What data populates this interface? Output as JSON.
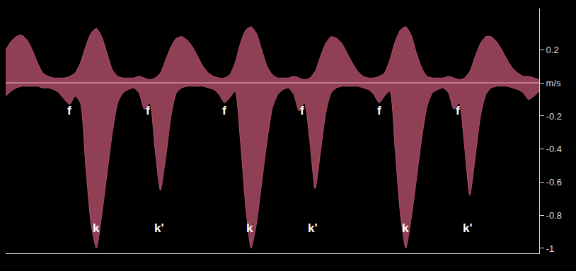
{
  "chart_data": {
    "type": "area",
    "x": [
      0,
      1,
      2,
      3,
      4,
      5,
      6,
      7,
      8,
      9,
      10,
      11,
      12,
      13,
      14,
      15,
      16,
      17,
      18,
      19,
      20,
      21,
      22,
      23,
      24,
      25,
      26,
      27,
      28,
      29,
      30,
      31,
      32,
      33,
      34,
      35,
      36,
      37,
      38,
      39,
      40,
      41,
      42,
      43,
      44,
      45,
      46,
      47,
      48,
      49,
      50,
      51,
      52,
      53,
      54,
      55,
      56,
      57,
      58,
      59,
      60,
      61,
      62,
      63,
      64,
      65,
      66,
      67,
      68,
      69,
      70,
      71,
      72,
      73,
      74,
      75,
      76,
      77,
      78,
      79,
      80,
      81,
      82,
      83,
      84,
      85,
      86,
      87,
      88,
      89,
      90,
      91,
      92,
      93,
      94,
      95,
      96,
      97,
      98,
      99,
      100
    ],
    "series": [
      {
        "color": "#b4506a",
        "values": [
          0.2,
          0.25,
          0.28,
          0.29,
          0.26,
          0.2,
          0.12,
          0.06,
          0.04,
          0.03,
          0.03,
          0.03,
          0.04,
          0.06,
          0.12,
          0.22,
          0.3,
          0.33,
          0.28,
          0.18,
          0.08,
          0.04,
          0.03,
          0.03,
          0.03,
          0.04,
          0.03,
          0.02,
          0.03,
          0.06,
          0.14,
          0.22,
          0.27,
          0.28,
          0.26,
          0.22,
          0.16,
          0.1,
          0.06,
          0.04,
          0.03,
          0.03,
          0.05,
          0.12,
          0.24,
          0.32,
          0.34,
          0.3,
          0.2,
          0.1,
          0.05,
          0.03,
          0.03,
          0.03,
          0.04,
          0.03,
          0.02,
          0.03,
          0.07,
          0.16,
          0.24,
          0.28,
          0.27,
          0.24,
          0.18,
          0.12,
          0.07,
          0.04,
          0.03,
          0.03,
          0.04,
          0.06,
          0.14,
          0.25,
          0.32,
          0.34,
          0.29,
          0.18,
          0.09,
          0.04,
          0.03,
          0.03,
          0.03,
          0.04,
          0.03,
          0.02,
          0.03,
          0.07,
          0.16,
          0.24,
          0.28,
          0.28,
          0.25,
          0.2,
          0.14,
          0.09,
          0.06,
          0.04,
          0.04,
          0.03,
          0.02
        ]
      },
      {
        "color": "#b4506a",
        "values": [
          -0.08,
          -0.05,
          -0.03,
          -0.02,
          -0.02,
          -0.02,
          -0.02,
          -0.03,
          -0.03,
          -0.04,
          -0.06,
          -0.1,
          -0.13,
          -0.08,
          -0.12,
          -0.5,
          -0.85,
          -1.0,
          -0.8,
          -0.55,
          -0.3,
          -0.12,
          -0.06,
          -0.04,
          -0.03,
          -0.06,
          -0.16,
          -0.12,
          -0.4,
          -0.65,
          -0.45,
          -0.2,
          -0.06,
          -0.03,
          -0.02,
          -0.02,
          -0.02,
          -0.02,
          -0.03,
          -0.04,
          -0.07,
          -0.12,
          -0.09,
          -0.05,
          -0.35,
          -0.75,
          -1.0,
          -0.85,
          -0.6,
          -0.35,
          -0.15,
          -0.07,
          -0.04,
          -0.03,
          -0.07,
          -0.17,
          -0.12,
          -0.35,
          -0.64,
          -0.42,
          -0.18,
          -0.06,
          -0.03,
          -0.02,
          -0.02,
          -0.02,
          -0.02,
          -0.03,
          -0.04,
          -0.07,
          -0.12,
          -0.08,
          -0.05,
          -0.4,
          -0.8,
          -1.0,
          -0.82,
          -0.58,
          -0.33,
          -0.14,
          -0.06,
          -0.04,
          -0.03,
          -0.06,
          -0.16,
          -0.12,
          -0.38,
          -0.68,
          -0.45,
          -0.2,
          -0.07,
          -0.03,
          -0.02,
          -0.02,
          -0.02,
          -0.03,
          -0.04,
          -0.06,
          -0.1,
          -0.08,
          -0.05
        ]
      }
    ],
    "xlim": [
      0,
      100
    ],
    "ylim": [
      -1.03,
      0.45
    ],
    "yticks": [
      0.2,
      {
        "value": 0,
        "label": "m/s"
      },
      -0.2,
      -0.4,
      -0.6,
      -0.8,
      -1
    ],
    "grid": false,
    "tick_labels": "y",
    "annotations": [
      {
        "text": "f",
        "x": 12,
        "y": -0.17
      },
      {
        "text": "f",
        "x": 26.6,
        "y": -0.17
      },
      {
        "text": "f",
        "x": 41,
        "y": -0.17
      },
      {
        "text": "f",
        "x": 55.6,
        "y": -0.17
      },
      {
        "text": "f",
        "x": 70,
        "y": -0.17
      },
      {
        "text": "f",
        "x": 84.7,
        "y": -0.17
      },
      {
        "text": "k",
        "x": 17,
        "y": -0.88
      },
      {
        "text": "k",
        "x": 45.7,
        "y": -0.88
      },
      {
        "text": "k",
        "x": 74.9,
        "y": -0.88
      },
      {
        "text": "k'",
        "x": 28.8,
        "y": -0.88
      },
      {
        "text": "k'",
        "x": 57.5,
        "y": -0.88
      },
      {
        "text": "k'",
        "x": 86.6,
        "y": -0.88
      }
    ]
  }
}
